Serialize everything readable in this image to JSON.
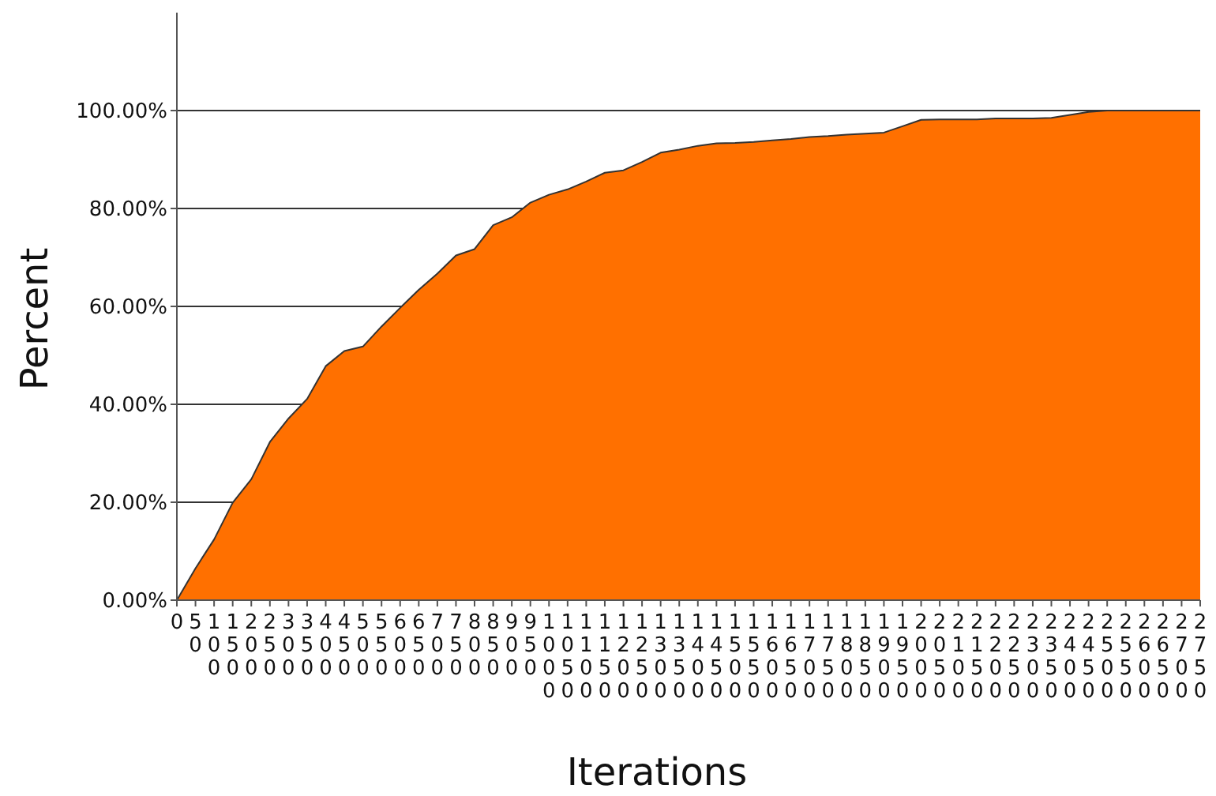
{
  "chart_data": {
    "type": "area",
    "xlabel": "Iterations",
    "ylabel": "Percent",
    "categories": [
      "0",
      "50",
      "100",
      "150",
      "200",
      "250",
      "300",
      "350",
      "400",
      "450",
      "500",
      "550",
      "600",
      "650",
      "700",
      "750",
      "800",
      "850",
      "900",
      "950",
      "1000",
      "1050",
      "1100",
      "1150",
      "1200",
      "1250",
      "1300",
      "1350",
      "1400",
      "1450",
      "1500",
      "1550",
      "1600",
      "1650",
      "1700",
      "1750",
      "1800",
      "1850",
      "1900",
      "1950",
      "2000",
      "2050",
      "2100",
      "2150",
      "2200",
      "2250",
      "2300",
      "2350",
      "2400",
      "2450",
      "2500",
      "2550",
      "2600",
      "2650",
      "2700",
      "2750"
    ],
    "series": [
      {
        "color": "#ff7000",
        "values": [
          0,
          6.5,
          12.4,
          19.9,
          24.7,
          32.3,
          37.1,
          41.1,
          47.8,
          50.9,
          51.8,
          55.9,
          59.7,
          63.4,
          66.7,
          70.4,
          71.7,
          76.6,
          78.2,
          81.2,
          82.8,
          83.9,
          85.5,
          87.3,
          87.8,
          89.5,
          91.4,
          92.0,
          92.8,
          93.3,
          93.4,
          93.6,
          93.9,
          94.2,
          94.6,
          94.8,
          95.1,
          95.3,
          95.5,
          96.8,
          98.1,
          98.2,
          98.2,
          98.2,
          98.4,
          98.4,
          98.4,
          98.5,
          99.1,
          99.7,
          100,
          100,
          100,
          100,
          100,
          100
        ]
      }
    ],
    "ylim": [
      0,
      120
    ],
    "yticks": [
      {
        "value": 0,
        "label": "0.00%"
      },
      {
        "value": 20,
        "label": "20.00%"
      },
      {
        "value": 40,
        "label": "40.00%"
      },
      {
        "value": 60,
        "label": "60.00%"
      },
      {
        "value": 80,
        "label": "80.00%"
      },
      {
        "value": 100,
        "label": "100.00%"
      }
    ],
    "grid": "y"
  }
}
